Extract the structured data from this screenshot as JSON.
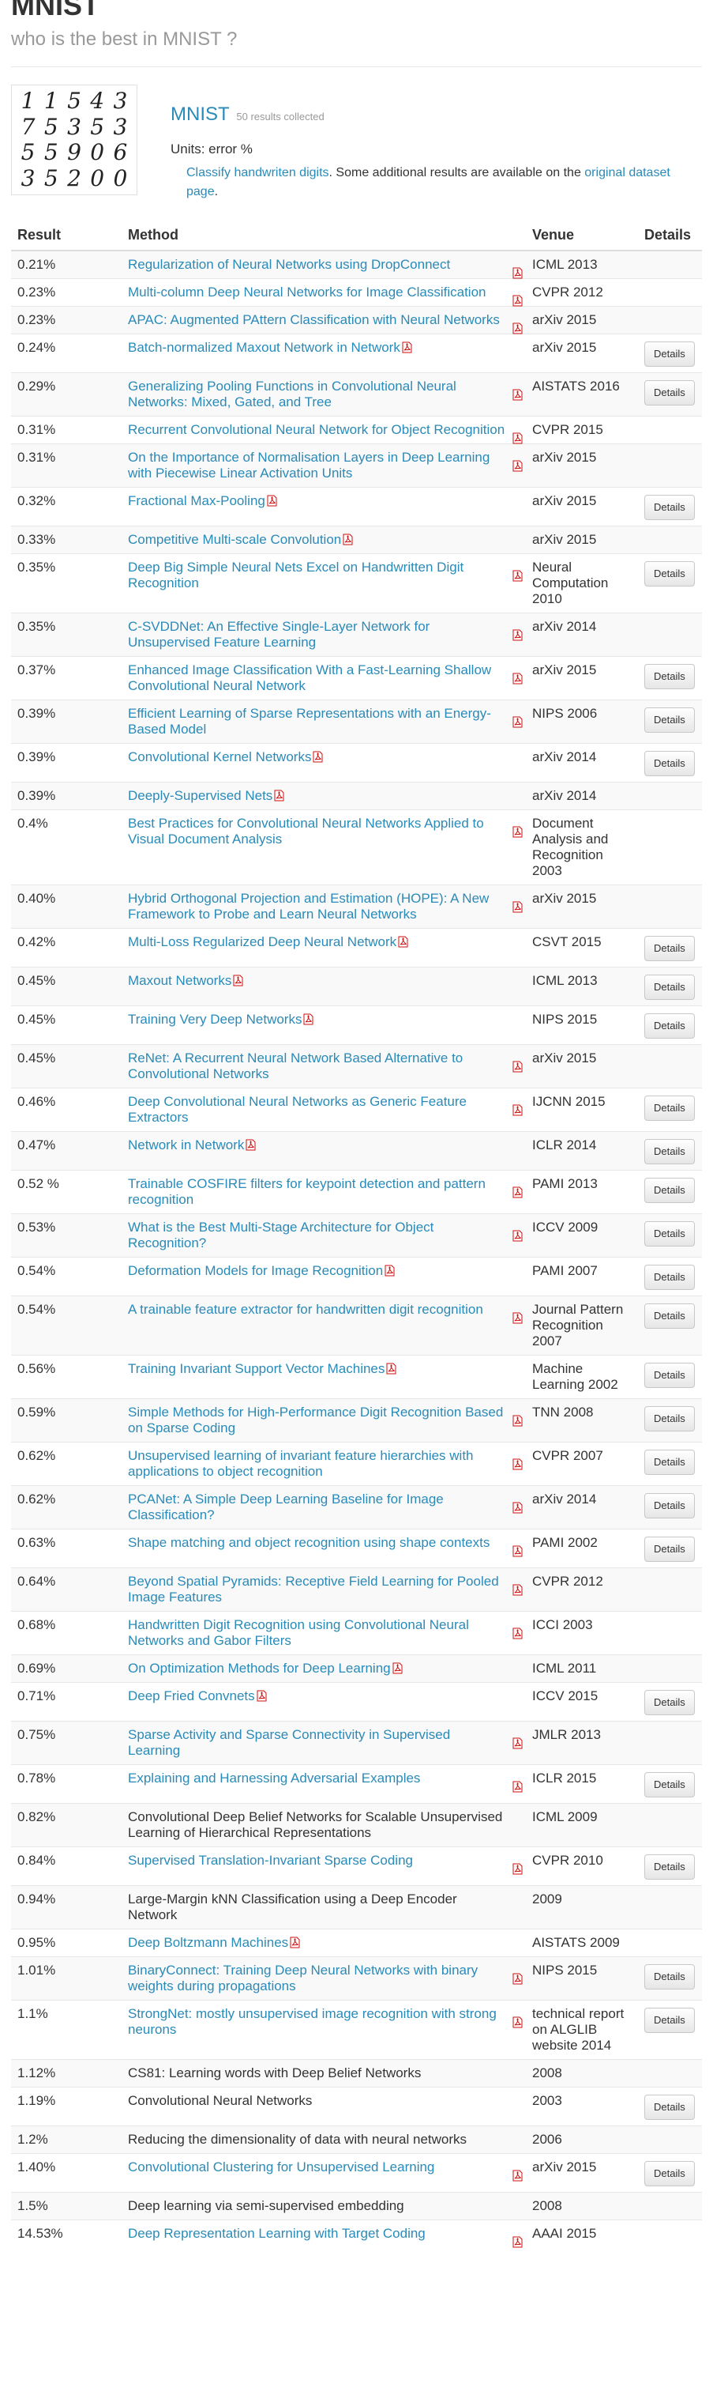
{
  "header": {
    "title": "MNIST",
    "subtitle": "who is the best in MNIST ?"
  },
  "dataset": {
    "thumbnail_digits": [
      "1",
      "1",
      "5",
      "4",
      "3",
      "7",
      "5",
      "3",
      "5",
      "3",
      "5",
      "5",
      "9",
      "0",
      "6",
      "3",
      "5",
      "2",
      "0",
      "0"
    ],
    "title": "MNIST",
    "count": "50 results collected",
    "units": "Units: error %",
    "desc_link": "Classify handwriten digits",
    "desc_mid": ". Some additional results are available on the ",
    "desc_link2": "original dataset page",
    "desc_end": "."
  },
  "table": {
    "headers": {
      "result": "Result",
      "method": "Method",
      "venue": "Venue",
      "details": "Details"
    },
    "details_label": "Details",
    "rows": [
      {
        "result": "0.21%",
        "method": "Regularization of Neural Networks using DropConnect",
        "link": true,
        "pdf": true,
        "venue": "ICML 2013",
        "details": false
      },
      {
        "result": "0.23%",
        "method": "Multi-column Deep Neural Networks for Image Classification",
        "link": true,
        "pdf": true,
        "venue": "CVPR 2012",
        "details": false
      },
      {
        "result": "0.23%",
        "method": "APAC: Augmented PAttern Classification with Neural Networks",
        "link": true,
        "pdf": true,
        "venue": "arXiv 2015",
        "details": false
      },
      {
        "result": "0.24%",
        "method": "Batch-normalized Maxout Network in Network",
        "link": true,
        "pdf": true,
        "venue": "arXiv 2015",
        "details": true
      },
      {
        "result": "0.29%",
        "method": "Generalizing Pooling Functions in Convolutional Neural Networks: Mixed, Gated, and Tree",
        "link": true,
        "pdf": true,
        "venue": "AISTATS 2016",
        "details": true
      },
      {
        "result": "0.31%",
        "method": "Recurrent Convolutional Neural Network for Object Recognition",
        "link": true,
        "pdf": true,
        "venue": "CVPR 2015",
        "details": false
      },
      {
        "result": "0.31%",
        "method": "On the Importance of Normalisation Layers in Deep Learning with Piecewise Linear Activation Units",
        "link": true,
        "pdf": true,
        "venue": "arXiv 2015",
        "details": false
      },
      {
        "result": "0.32%",
        "method": "Fractional Max-Pooling",
        "link": true,
        "pdf": true,
        "venue": "arXiv 2015",
        "details": true
      },
      {
        "result": "0.33%",
        "method": "Competitive Multi-scale Convolution",
        "link": true,
        "pdf": true,
        "venue": "arXiv 2015",
        "details": false
      },
      {
        "result": "0.35%",
        "method": "Deep Big Simple Neural Nets Excel on Handwritten Digit Recognition",
        "link": true,
        "pdf": true,
        "venue": "Neural Computation 2010",
        "details": true
      },
      {
        "result": "0.35%",
        "method": "C-SVDDNet: An Effective Single-Layer Network for Unsupervised Feature Learning",
        "link": true,
        "pdf": true,
        "venue": "arXiv 2014",
        "details": false
      },
      {
        "result": "0.37%",
        "method": "Enhanced Image Classification With a Fast-Learning Shallow Convolutional Neural Network",
        "link": true,
        "pdf": true,
        "venue": "arXiv 2015",
        "details": true
      },
      {
        "result": "0.39%",
        "method": "Efficient Learning of Sparse Representations with an Energy-Based Model",
        "link": true,
        "pdf": true,
        "venue": "NIPS 2006",
        "details": true
      },
      {
        "result": "0.39%",
        "method": "Convolutional Kernel Networks",
        "link": true,
        "pdf": true,
        "venue": "arXiv 2014",
        "details": true
      },
      {
        "result": "0.39%",
        "method": "Deeply-Supervised Nets",
        "link": true,
        "pdf": true,
        "venue": "arXiv 2014",
        "details": false
      },
      {
        "result": "0.4%",
        "method": "Best Practices for Convolutional Neural Networks Applied to Visual Document Analysis",
        "link": true,
        "pdf": true,
        "venue": "Document Analysis and Recognition 2003",
        "details": false
      },
      {
        "result": "0.40%",
        "method": "Hybrid Orthogonal Projection and Estimation (HOPE): A New Framework to Probe and Learn Neural Networks",
        "link": true,
        "pdf": true,
        "venue": "arXiv 2015",
        "details": false
      },
      {
        "result": "0.42%",
        "method": "Multi-Loss Regularized Deep Neural Network",
        "link": true,
        "pdf": true,
        "venue": "CSVT 2015",
        "details": true
      },
      {
        "result": "0.45%",
        "method": "Maxout Networks",
        "link": true,
        "pdf": true,
        "venue": "ICML 2013",
        "details": true
      },
      {
        "result": "0.45%",
        "method": "Training Very Deep Networks",
        "link": true,
        "pdf": true,
        "venue": "NIPS 2015",
        "details": true
      },
      {
        "result": "0.45%",
        "method": "ReNet: A Recurrent Neural Network Based Alternative to Convolutional Networks",
        "link": true,
        "pdf": true,
        "venue": "arXiv 2015",
        "details": false
      },
      {
        "result": "0.46%",
        "method": "Deep Convolutional Neural Networks as Generic Feature Extractors",
        "link": true,
        "pdf": true,
        "venue": "IJCNN 2015",
        "details": true
      },
      {
        "result": "0.47%",
        "method": "Network in Network",
        "link": true,
        "pdf": true,
        "venue": "ICLR 2014",
        "details": true
      },
      {
        "result": "0.52 %",
        "method": "Trainable COSFIRE filters for keypoint detection and pattern recognition",
        "link": true,
        "pdf": true,
        "venue": "PAMI 2013",
        "details": true
      },
      {
        "result": "0.53%",
        "method": "What is the Best Multi-Stage Architecture for Object Recognition?",
        "link": true,
        "pdf": true,
        "venue": "ICCV 2009",
        "details": true
      },
      {
        "result": "0.54%",
        "method": "Deformation Models for Image Recognition",
        "link": true,
        "pdf": true,
        "venue": "PAMI 2007",
        "details": true
      },
      {
        "result": "0.54%",
        "method": "A trainable feature extractor for handwritten digit recognition",
        "link": true,
        "pdf": true,
        "venue": "Journal Pattern Recognition 2007",
        "details": true
      },
      {
        "result": "0.56%",
        "method": "Training Invariant Support Vector Machines",
        "link": true,
        "pdf": true,
        "venue": "Machine Learning 2002",
        "details": true
      },
      {
        "result": "0.59%",
        "method": "Simple Methods for High-Performance Digit Recognition Based on Sparse Coding",
        "link": true,
        "pdf": true,
        "venue": "TNN 2008",
        "details": true
      },
      {
        "result": "0.62%",
        "method": "Unsupervised learning of invariant feature hierarchies with applications to object recognition",
        "link": true,
        "pdf": true,
        "venue": "CVPR 2007",
        "details": true
      },
      {
        "result": "0.62%",
        "method": "PCANet: A Simple Deep Learning Baseline for Image Classification?",
        "link": true,
        "pdf": true,
        "venue": "arXiv 2014",
        "details": true
      },
      {
        "result": "0.63%",
        "method": "Shape matching and object recognition using shape contexts",
        "link": true,
        "pdf": true,
        "venue": "PAMI 2002",
        "details": true
      },
      {
        "result": "0.64%",
        "method": "Beyond Spatial Pyramids: Receptive Field Learning for Pooled Image Features",
        "link": true,
        "pdf": true,
        "venue": "CVPR 2012",
        "details": false
      },
      {
        "result": "0.68%",
        "method": "Handwritten Digit Recognition using Convolutional Neural Networks and Gabor Filters",
        "link": true,
        "pdf": true,
        "venue": "ICCI 2003",
        "details": false
      },
      {
        "result": "0.69%",
        "method": "On Optimization Methods for Deep Learning",
        "link": true,
        "pdf": true,
        "venue": "ICML 2011",
        "details": false
      },
      {
        "result": "0.71%",
        "method": "Deep Fried Convnets",
        "link": true,
        "pdf": true,
        "venue": "ICCV 2015",
        "details": true
      },
      {
        "result": "0.75%",
        "method": "Sparse Activity and Sparse Connectivity in Supervised Learning",
        "link": true,
        "pdf": true,
        "venue": "JMLR 2013",
        "details": false
      },
      {
        "result": "0.78%",
        "method": "Explaining and Harnessing Adversarial Examples",
        "link": true,
        "pdf": true,
        "venue": "ICLR 2015",
        "details": true
      },
      {
        "result": "0.82%",
        "method": "Convolutional Deep Belief Networks for Scalable Unsupervised Learning of Hierarchical Representations",
        "link": false,
        "pdf": false,
        "venue": "ICML 2009",
        "details": false
      },
      {
        "result": "0.84%",
        "method": "Supervised Translation-Invariant Sparse Coding",
        "link": true,
        "pdf": true,
        "venue": "CVPR 2010",
        "details": true
      },
      {
        "result": "0.94%",
        "method": "Large-Margin kNN Classification using a Deep Encoder Network",
        "link": false,
        "pdf": false,
        "venue": "2009",
        "details": false
      },
      {
        "result": "0.95%",
        "method": "Deep Boltzmann Machines",
        "link": true,
        "pdf": true,
        "venue": "AISTATS 2009",
        "details": false
      },
      {
        "result": "1.01%",
        "method": "BinaryConnect: Training Deep Neural Networks with binary weights during propagations",
        "link": true,
        "pdf": true,
        "venue": "NIPS 2015",
        "details": true
      },
      {
        "result": "1.1%",
        "method": "StrongNet: mostly unsupervised image recognition with strong neurons",
        "link": true,
        "pdf": true,
        "venue": "technical report on ALGLIB website 2014",
        "details": true
      },
      {
        "result": "1.12%",
        "method": "CS81: Learning words with Deep Belief Networks",
        "link": false,
        "pdf": false,
        "venue": "2008",
        "details": false
      },
      {
        "result": "1.19%",
        "method": "Convolutional Neural Networks",
        "link": false,
        "pdf": false,
        "venue": "2003",
        "details": true
      },
      {
        "result": "1.2%",
        "method": "Reducing the dimensionality of data with neural networks",
        "link": false,
        "pdf": false,
        "venue": "2006",
        "details": false
      },
      {
        "result": "1.40%",
        "method": "Convolutional Clustering for Unsupervised Learning",
        "link": true,
        "pdf": true,
        "venue": "arXiv 2015",
        "details": true
      },
      {
        "result": "1.5%",
        "method": "Deep learning via semi-supervised embedding",
        "link": false,
        "pdf": false,
        "venue": "2008",
        "details": false
      },
      {
        "result": "14.53%",
        "method": "Deep Representation Learning with Target Coding",
        "link": true,
        "pdf": true,
        "venue": "AAAI 2015",
        "details": false
      }
    ]
  }
}
